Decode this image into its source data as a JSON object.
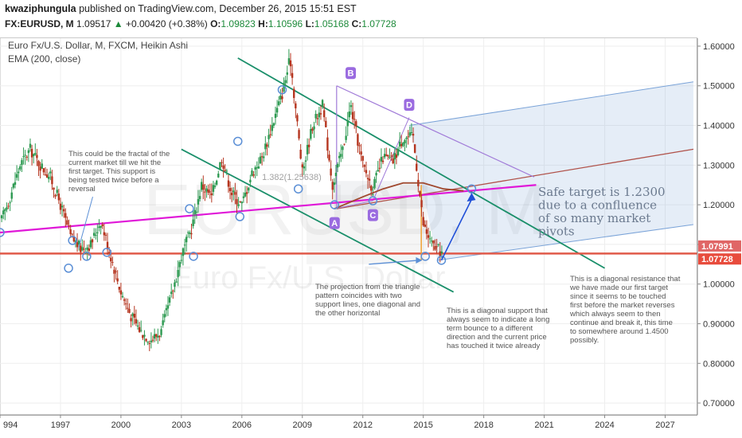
{
  "header": {
    "author": "kwaziphungula",
    "published": " published on TradingView.com, December 26, 2015 15:51 EST",
    "symbol": "FX:EURUSD, M",
    "last": "1.09517",
    "change": "+0.00420 (+0.38%)",
    "open_label": "O:",
    "open": "1.09823",
    "high_label": "H:",
    "high": "1.10596",
    "low_label": "L:",
    "low": "1.05168",
    "close_label": "C:",
    "close": "1.07728"
  },
  "chart_data": {
    "type": "candlestick",
    "title": "Euro Fx/U.S. Dollar, M, FXCM, Heikin Ashi",
    "indicator": "EMA (200, close)",
    "watermark_big": "EURUSD, M",
    "watermark_small": "Euro Fx/U.S. Dollar",
    "x_ticks": [
      "994",
      "1997",
      "2000",
      "2003",
      "2006",
      "2009",
      "2012",
      "2015",
      "2018",
      "2021",
      "2024",
      "2027"
    ],
    "y_ticks": [
      "1.60000",
      "1.50000",
      "1.40000",
      "1.30000",
      "1.20000",
      "1.10000",
      "1.00000",
      "0.90000",
      "0.80000",
      "0.70000"
    ],
    "ylim": [
      0.67,
      1.62
    ],
    "xlim": [
      1994.0,
      2028.6
    ],
    "price_labels": [
      {
        "value": 1.07991,
        "text": "1.07991",
        "color": "#e06666"
      },
      {
        "value": 1.07728,
        "text": "1.07728",
        "color": "#e84c3d"
      }
    ],
    "close_path": [
      [
        1994.0,
        1.15
      ],
      [
        1994.5,
        1.22
      ],
      [
        1995.0,
        1.3
      ],
      [
        1995.5,
        1.34
      ],
      [
        1996.0,
        1.3
      ],
      [
        1996.5,
        1.27
      ],
      [
        1997.0,
        1.2
      ],
      [
        1997.5,
        1.12
      ],
      [
        1998.0,
        1.09
      ],
      [
        1998.5,
        1.1
      ],
      [
        1999.0,
        1.16
      ],
      [
        1999.5,
        1.07
      ],
      [
        2000.0,
        0.98
      ],
      [
        2000.5,
        0.92
      ],
      [
        2001.0,
        0.88
      ],
      [
        2001.5,
        0.86
      ],
      [
        2002.0,
        0.88
      ],
      [
        2002.5,
        0.97
      ],
      [
        2003.0,
        1.07
      ],
      [
        2003.5,
        1.14
      ],
      [
        2004.0,
        1.25
      ],
      [
        2004.5,
        1.22
      ],
      [
        2005.0,
        1.32
      ],
      [
        2005.5,
        1.23
      ],
      [
        2006.0,
        1.2
      ],
      [
        2006.5,
        1.28
      ],
      [
        2007.0,
        1.32
      ],
      [
        2007.5,
        1.4
      ],
      [
        2008.0,
        1.48
      ],
      [
        2008.4,
        1.57
      ],
      [
        2008.8,
        1.38
      ],
      [
        2009.0,
        1.28
      ],
      [
        2009.5,
        1.4
      ],
      [
        2010.0,
        1.45
      ],
      [
        2010.5,
        1.25
      ],
      [
        2011.0,
        1.34
      ],
      [
        2011.4,
        1.45
      ],
      [
        2012.0,
        1.3
      ],
      [
        2012.5,
        1.24
      ],
      [
        2013.0,
        1.32
      ],
      [
        2013.5,
        1.31
      ],
      [
        2014.0,
        1.37
      ],
      [
        2014.5,
        1.37
      ],
      [
        2015.0,
        1.15
      ],
      [
        2015.4,
        1.1
      ],
      [
        2015.9,
        1.08
      ]
    ],
    "ema200": [
      [
        2010.6,
        1.19
      ],
      [
        2012.0,
        1.22
      ],
      [
        2013.0,
        1.24
      ],
      [
        2014.0,
        1.255
      ],
      [
        2015.0,
        1.255
      ],
      [
        2016.0,
        1.24
      ],
      [
        2017.0,
        1.235
      ]
    ],
    "drawings": {
      "magenta_trendline": [
        [
          1994.0,
          1.13
        ],
        [
          2020.6,
          1.25
        ]
      ],
      "green_channel_upper": [
        [
          2005.8,
          1.57
        ],
        [
          2024.0,
          1.04
        ]
      ],
      "green_channel_lower": [
        [
          2003.0,
          1.34
        ],
        [
          2016.5,
          0.98
        ]
      ],
      "purple_line_upper": [
        [
          2010.7,
          1.5
        ],
        [
          2020.5,
          1.27
        ]
      ],
      "purple_line_lower": [
        [
          2010.7,
          1.5
        ],
        [
          2010.7,
          1.19
        ]
      ],
      "red_line": [
        [
          2010.7,
          1.19
        ],
        [
          2028.4,
          1.34
        ]
      ],
      "blue_channel_top": [
        [
          2014.3,
          1.4
        ],
        [
          2028.4,
          1.51
        ]
      ],
      "blue_channel_bottom": [
        [
          2015.7,
          1.06
        ],
        [
          2028.4,
          1.15
        ]
      ],
      "horizontal_support": 1.077,
      "pivot_box": [
        [
          2010.6,
          2015.2
        ],
        [
          1.19,
          1.26
        ]
      ],
      "arrow_up": [
        [
          2015.9,
          1.06
        ],
        [
          2017.4,
          1.23
        ]
      ]
    },
    "pattern_points": [
      {
        "label": "A",
        "x": 2010.6,
        "y": 1.19
      },
      {
        "label": "B",
        "x": 2011.4,
        "y": 1.5
      },
      {
        "label": "C",
        "x": 2012.5,
        "y": 1.21
      },
      {
        "label": "D",
        "x": 2014.3,
        "y": 1.42
      }
    ],
    "fib_ghost_label": "1.382(1.25638)",
    "circles": [
      [
        1994.0,
        1.13
      ],
      [
        1997.4,
        1.04
      ],
      [
        1997.6,
        1.11
      ],
      [
        1998.3,
        1.07
      ],
      [
        1999.3,
        1.08
      ],
      [
        2003.4,
        1.19
      ],
      [
        2003.6,
        1.07
      ],
      [
        2005.8,
        1.36
      ],
      [
        2005.9,
        1.17
      ],
      [
        2008.0,
        1.49
      ],
      [
        2008.8,
        1.24
      ],
      [
        2010.6,
        1.2
      ],
      [
        2012.5,
        1.21
      ],
      [
        2015.1,
        1.07
      ],
      [
        2015.9,
        1.06
      ],
      [
        2017.4,
        1.24
      ]
    ],
    "annotations": {
      "fractal_note": [
        "This could be the fractal of the",
        "current market till we hit the",
        "first target. This support is",
        "being tested twice before a",
        "reversal"
      ],
      "projection_note": [
        "The projection from the triangle",
        "pattern coincides with two",
        "support lines, one diagonal and",
        "the other horizontal"
      ],
      "diag_support_note": [
        "This is a diagonal support that",
        "always seem to indicate a long",
        "term bounce to a different",
        "direction and the current price",
        "has touched it twice already"
      ],
      "diag_resistance_note": [
        "This is a diagonal resistance that",
        "we have made our first target",
        "since it seems to be touched",
        "first before the market reverses",
        "which always seem to then",
        "continue and break it, this time",
        "to somewhere around 1.4500",
        "possibly."
      ],
      "safe_target_note": [
        "Safe target is 1.2300",
        "due to a confluence",
        "of so many market",
        "pivots"
      ]
    }
  }
}
